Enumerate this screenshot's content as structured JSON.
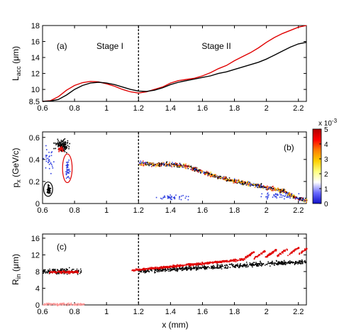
{
  "figure": {
    "xlabel": "x (mm)"
  },
  "chart_data": [
    {
      "id": "a",
      "type": "line",
      "panel_label": "(a)",
      "ylabel": {
        "main": "L",
        "sub": "acc",
        "units": " (μm)"
      },
      "xlim": [
        0.6,
        2.25
      ],
      "ylim": [
        8.5,
        18
      ],
      "xticks": [
        "0.6",
        "0.8",
        "1",
        "1.2",
        "1.4",
        "1.6",
        "1.8",
        "2",
        "2.2"
      ],
      "yticks": [
        "8.5",
        "10",
        "12",
        "14",
        "16",
        "18"
      ],
      "annotations": [
        "Stage I",
        "Stage II"
      ],
      "divider_x": 1.2,
      "series": [
        {
          "color": "#e00000",
          "x": [
            0.6,
            0.65,
            0.7,
            0.75,
            0.8,
            0.85,
            0.9,
            0.95,
            1.0,
            1.05,
            1.1,
            1.15,
            1.2,
            1.25,
            1.3,
            1.35,
            1.4,
            1.45,
            1.5,
            1.55,
            1.6,
            1.65,
            1.7,
            1.75,
            1.8,
            1.85,
            1.9,
            1.95,
            2.0,
            2.05,
            2.1,
            2.15,
            2.2,
            2.25
          ],
          "y": [
            8.5,
            8.6,
            9.1,
            9.9,
            10.5,
            10.85,
            11.0,
            10.95,
            10.7,
            10.4,
            10.0,
            9.7,
            9.55,
            9.7,
            10.0,
            10.3,
            10.8,
            11.1,
            11.25,
            11.4,
            11.7,
            12.1,
            12.6,
            13.0,
            13.6,
            14.1,
            14.6,
            15.2,
            15.9,
            16.5,
            17.0,
            17.4,
            17.8,
            18.0
          ]
        },
        {
          "color": "#000000",
          "x": [
            0.6,
            0.65,
            0.7,
            0.75,
            0.8,
            0.85,
            0.9,
            0.95,
            1.0,
            1.05,
            1.1,
            1.15,
            1.2,
            1.25,
            1.3,
            1.35,
            1.4,
            1.45,
            1.5,
            1.55,
            1.6,
            1.65,
            1.7,
            1.75,
            1.8,
            1.85,
            1.9,
            1.95,
            2.0,
            2.05,
            2.1,
            2.15,
            2.2,
            2.25
          ],
          "y": [
            8.5,
            8.55,
            8.75,
            9.3,
            10.0,
            10.5,
            10.8,
            10.9,
            10.8,
            10.6,
            10.3,
            10.0,
            9.8,
            9.75,
            9.9,
            10.2,
            10.6,
            10.9,
            11.1,
            11.3,
            11.5,
            11.7,
            12.0,
            12.2,
            12.5,
            12.8,
            13.1,
            13.4,
            13.8,
            14.3,
            14.8,
            15.3,
            15.7,
            15.9
          ]
        }
      ]
    },
    {
      "id": "b",
      "type": "scatter",
      "panel_label": "(b)",
      "ylabel": {
        "main": "p",
        "sub": "x",
        "units": " (GeV/c)"
      },
      "xlim": [
        0.6,
        2.25
      ],
      "ylim": [
        0,
        0.65
      ],
      "xticks": [
        "0.6",
        "0.8",
        "1",
        "1.2",
        "1.4",
        "1.6",
        "1.8",
        "2",
        "2.2"
      ],
      "yticks": [
        "0",
        "0.2",
        "0.4",
        "0.6"
      ],
      "divider_x": 1.2,
      "colorbar": {
        "title": "x 10",
        "exponent": "-3",
        "ticks": [
          "0",
          "1",
          "2",
          "3",
          "4",
          "5"
        ],
        "colors": [
          "#1010c8",
          "#6a6aff",
          "#ffffff",
          "#ffff80",
          "#ffd000",
          "#ff8000",
          "#ff0000",
          "#b00000"
        ]
      },
      "markers": [
        {
          "shape": "ellipse",
          "color": "#000000",
          "cx": 0.635,
          "cy": 0.13,
          "rx": 0.028,
          "ry": 0.065
        },
        {
          "shape": "ellipse",
          "color": "#e00000",
          "cx": 0.755,
          "cy": 0.32,
          "rx": 0.03,
          "ry": 0.13
        }
      ],
      "clusters": [
        {
          "color": "#000000",
          "center": [
            0.72,
            0.53
          ],
          "spread": [
            0.04,
            0.05
          ],
          "count": 120
        },
        {
          "color": "#e01010",
          "center": [
            0.71,
            0.5
          ],
          "spread": [
            0.02,
            0.02
          ],
          "count": 30
        },
        {
          "color": "#3040e0",
          "center": [
            0.755,
            0.3
          ],
          "spread": [
            0.012,
            0.08
          ],
          "count": 40
        },
        {
          "color": "#3040e0",
          "center": [
            0.64,
            0.4
          ],
          "spread": [
            0.03,
            0.1
          ],
          "count": 30
        },
        {
          "color": "#000000",
          "center": [
            0.635,
            0.13
          ],
          "spread": [
            0.012,
            0.04
          ],
          "count": 40
        },
        {
          "color": "#3040e0",
          "center": [
            1.4,
            0.06
          ],
          "spread": [
            0.1,
            0.02
          ],
          "count": 40
        },
        {
          "color": "#3040e0",
          "center": [
            2.05,
            0.07
          ],
          "spread": [
            0.12,
            0.03
          ],
          "count": 40
        }
      ],
      "band": {
        "x": [
          1.2,
          1.3,
          1.4,
          1.5,
          1.6,
          1.7,
          1.8,
          1.9,
          2.0,
          2.1,
          2.15,
          2.2,
          2.25
        ],
        "y": [
          0.37,
          0.36,
          0.36,
          0.34,
          0.29,
          0.24,
          0.21,
          0.18,
          0.15,
          0.12,
          0.08,
          0.05,
          0.03
        ]
      }
    },
    {
      "id": "c",
      "type": "scatter",
      "panel_label": "(c)",
      "ylabel": {
        "main": "R",
        "sub": "in",
        "units": " (μm)"
      },
      "xlim": [
        0.6,
        2.25
      ],
      "ylim": [
        0,
        17
      ],
      "xticks": [
        "0.6",
        "0.8",
        "1",
        "1.2",
        "1.4",
        "1.6",
        "1.8",
        "2",
        "2.2"
      ],
      "yticks": [
        "0",
        "4",
        "8",
        "12",
        "16"
      ],
      "divider_x": 1.2,
      "red_trend": {
        "x": [
          1.15,
          2.25
        ],
        "y": [
          8.4,
          12.5
        ]
      },
      "black_trend": {
        "x": [
          1.2,
          2.25
        ],
        "y": [
          8.2,
          10.5
        ]
      },
      "early_clusters": [
        {
          "color": "#000000",
          "x": [
            0.6,
            0.84
          ],
          "y": 8.2,
          "spread": 0.6
        },
        {
          "color": "#e00000",
          "x": [
            0.64,
            0.82
          ],
          "y": 8.0,
          "spread": 0.3
        },
        {
          "color": "#ff9999",
          "x": [
            0.6,
            0.86
          ],
          "y": 0.3,
          "spread": 0.3
        }
      ]
    }
  ]
}
